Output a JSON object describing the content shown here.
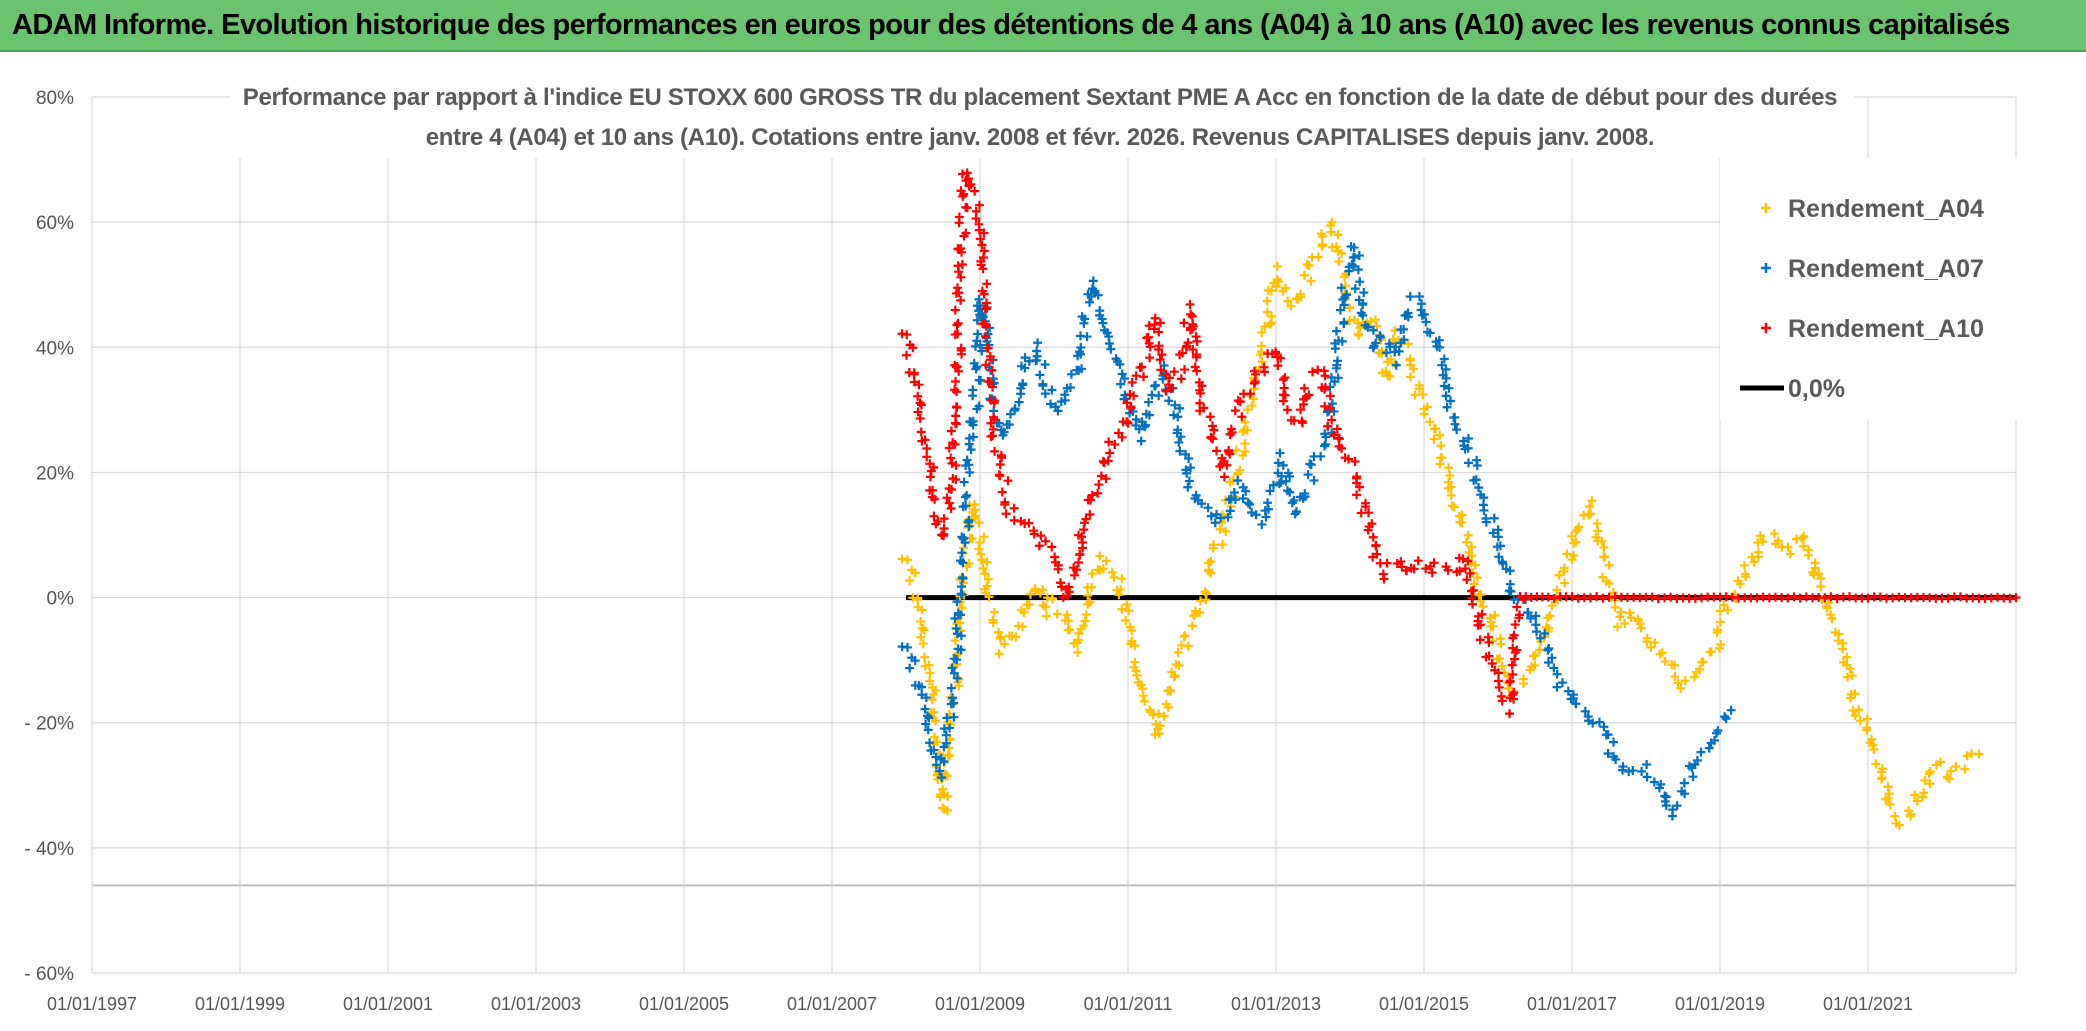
{
  "header": {
    "banner": "ADAM Informe. Evolution historique des performances en euros pour des détentions de 4 ans (A04) à 10 ans (A10) avec les revenus connus capitalisés"
  },
  "colors": {
    "banner_bg": "#6cc36e",
    "a04": "#ffc000",
    "a07": "#0070c0",
    "a10": "#ff0000",
    "zero": "#000000",
    "grid": "#d9d9d9"
  },
  "chart_data": {
    "type": "scatter",
    "title_lines": [
      "Performance  par rapport à l'indice EU STOXX 600 GROSS TR  du placement Sextant PME A Acc en fonction de la date de début pour des durées",
      "entre 4 (A04) et 10 ans (A10). Cotations entre janv. 2008 et févr. 2026. Revenus CAPITALISES depuis janv. 2008."
    ],
    "xlabel": "",
    "ylabel": "",
    "x_range": [
      1997.0,
      2023.0
    ],
    "ylim": [
      -60,
      80
    ],
    "y_ticks": [
      {
        "value": 80,
        "label": "80%"
      },
      {
        "value": 60,
        "label": "60%"
      },
      {
        "value": 40,
        "label": "40%"
      },
      {
        "value": 20,
        "label": "20%"
      },
      {
        "value": 0,
        "label": "0%"
      },
      {
        "value": -20,
        "label": "- 20%"
      },
      {
        "value": -40,
        "label": "- 40%"
      },
      {
        "value": -60,
        "label": "- 60%"
      }
    ],
    "x_ticks": [
      {
        "value": 1997.0,
        "label": "01/01/1997"
      },
      {
        "value": 1999.0,
        "label": "01/01/1999"
      },
      {
        "value": 2001.0,
        "label": "01/01/2001"
      },
      {
        "value": 2003.0,
        "label": "01/01/2003"
      },
      {
        "value": 2005.0,
        "label": "01/01/2005"
      },
      {
        "value": 2007.0,
        "label": "01/01/2007"
      },
      {
        "value": 2009.0,
        "label": "01/01/2009"
      },
      {
        "value": 2011.0,
        "label": "01/01/2011"
      },
      {
        "value": 2013.0,
        "label": "01/01/2013"
      },
      {
        "value": 2015.0,
        "label": "01/01/2015"
      },
      {
        "value": 2017.0,
        "label": "01/01/2017"
      },
      {
        "value": 2019.0,
        "label": "01/01/2019"
      },
      {
        "value": 2021.0,
        "label": "01/01/2021"
      }
    ],
    "extra_hline": -46,
    "legend_position": "top-right",
    "series": [
      {
        "name": "Rendement_A04",
        "color": "#ffc000",
        "marker": "+",
        "points": [
          [
            2008.0,
            6
          ],
          [
            2008.1,
            2
          ],
          [
            2008.2,
            -4
          ],
          [
            2008.3,
            -10
          ],
          [
            2008.45,
            -26
          ],
          [
            2008.5,
            -34
          ],
          [
            2008.6,
            -18
          ],
          [
            2008.7,
            -10
          ],
          [
            2008.8,
            5
          ],
          [
            2008.9,
            15
          ],
          [
            2009.0,
            10
          ],
          [
            2009.1,
            0
          ],
          [
            2009.2,
            -4
          ],
          [
            2009.3,
            -8
          ],
          [
            2009.45,
            -6
          ],
          [
            2009.6,
            -2
          ],
          [
            2009.75,
            2
          ],
          [
            2009.9,
            -2
          ],
          [
            2010.0,
            0
          ],
          [
            2010.1,
            -3
          ],
          [
            2010.2,
            -4
          ],
          [
            2010.35,
            -8
          ],
          [
            2010.5,
            2
          ],
          [
            2010.65,
            6
          ],
          [
            2010.8,
            5
          ],
          [
            2010.9,
            2
          ],
          [
            2011.0,
            -5
          ],
          [
            2011.15,
            -12
          ],
          [
            2011.3,
            -18
          ],
          [
            2011.4,
            -22
          ],
          [
            2011.55,
            -14
          ],
          [
            2011.7,
            -10
          ],
          [
            2011.85,
            -4
          ],
          [
            2012.0,
            -2
          ],
          [
            2012.1,
            5
          ],
          [
            2012.3,
            12
          ],
          [
            2012.5,
            22
          ],
          [
            2012.7,
            33
          ],
          [
            2012.9,
            45
          ],
          [
            2013.0,
            52
          ],
          [
            2013.15,
            48
          ],
          [
            2013.3,
            47
          ],
          [
            2013.5,
            53
          ],
          [
            2013.65,
            58
          ],
          [
            2013.75,
            60
          ],
          [
            2013.85,
            55
          ],
          [
            2013.95,
            48
          ],
          [
            2014.1,
            42
          ],
          [
            2014.25,
            45
          ],
          [
            2014.4,
            40
          ],
          [
            2014.5,
            35
          ],
          [
            2014.65,
            42
          ],
          [
            2014.8,
            38
          ],
          [
            2014.95,
            32
          ],
          [
            2015.05,
            28
          ],
          [
            2015.2,
            25
          ],
          [
            2015.35,
            18
          ],
          [
            2015.5,
            12
          ],
          [
            2015.6,
            8
          ],
          [
            2015.75,
            0
          ],
          [
            2015.9,
            -3
          ],
          [
            2016.05,
            -10
          ],
          [
            2016.2,
            -15
          ],
          [
            2016.3,
            -14
          ],
          [
            2016.5,
            -10
          ],
          [
            2016.65,
            -6
          ],
          [
            2016.8,
            0
          ],
          [
            2016.95,
            5
          ],
          [
            2017.1,
            12
          ],
          [
            2017.25,
            15
          ],
          [
            2017.35,
            10
          ],
          [
            2017.5,
            2
          ],
          [
            2017.65,
            -4
          ],
          [
            2017.8,
            -2
          ],
          [
            2017.95,
            -4
          ],
          [
            2018.1,
            -8
          ],
          [
            2018.3,
            -10
          ],
          [
            2018.5,
            -14
          ],
          [
            2018.65,
            -12
          ],
          [
            2018.8,
            -10
          ],
          [
            2018.95,
            -8
          ],
          [
            2019.05,
            -3
          ],
          [
            2019.2,
            0
          ],
          [
            2019.35,
            4
          ],
          [
            2019.55,
            10
          ],
          [
            2019.7,
            10
          ],
          [
            2019.85,
            8
          ],
          [
            2020.0,
            8
          ],
          [
            2020.15,
            10
          ],
          [
            2020.3,
            4
          ],
          [
            2020.5,
            -2
          ],
          [
            2020.7,
            -10
          ],
          [
            2020.85,
            -18
          ],
          [
            2021.0,
            -22
          ],
          [
            2021.15,
            -27
          ],
          [
            2021.3,
            -33
          ],
          [
            2021.45,
            -36
          ],
          [
            2021.6,
            -35
          ],
          [
            2021.75,
            -30
          ],
          [
            2021.9,
            -27
          ],
          [
            2022.1,
            -28
          ],
          [
            2022.3,
            -27
          ],
          [
            2022.5,
            -25
          ]
        ]
      },
      {
        "name": "Rendement_A07",
        "color": "#0070c0",
        "marker": "+",
        "points": [
          [
            2008.0,
            -8
          ],
          [
            2008.1,
            -12
          ],
          [
            2008.2,
            -15
          ],
          [
            2008.3,
            -20
          ],
          [
            2008.45,
            -28
          ],
          [
            2008.55,
            -22
          ],
          [
            2008.65,
            -16
          ],
          [
            2008.75,
            5
          ],
          [
            2008.85,
            20
          ],
          [
            2008.95,
            32
          ],
          [
            2009.0,
            48
          ],
          [
            2009.1,
            42
          ],
          [
            2009.2,
            30
          ],
          [
            2009.3,
            26
          ],
          [
            2009.45,
            30
          ],
          [
            2009.6,
            36
          ],
          [
            2009.75,
            40
          ],
          [
            2009.9,
            34
          ],
          [
            2010.05,
            30
          ],
          [
            2010.2,
            33
          ],
          [
            2010.35,
            38
          ],
          [
            2010.5,
            50
          ],
          [
            2010.65,
            46
          ],
          [
            2010.8,
            40
          ],
          [
            2010.9,
            36
          ],
          [
            2011.0,
            30
          ],
          [
            2011.15,
            26
          ],
          [
            2011.3,
            30
          ],
          [
            2011.45,
            36
          ],
          [
            2011.6,
            32
          ],
          [
            2011.75,
            24
          ],
          [
            2011.9,
            16
          ],
          [
            2012.05,
            14
          ],
          [
            2012.2,
            12
          ],
          [
            2012.35,
            14
          ],
          [
            2012.5,
            18
          ],
          [
            2012.65,
            14
          ],
          [
            2012.8,
            12
          ],
          [
            2012.95,
            16
          ],
          [
            2013.1,
            22
          ],
          [
            2013.25,
            14
          ],
          [
            2013.4,
            16
          ],
          [
            2013.55,
            22
          ],
          [
            2013.7,
            26
          ],
          [
            2013.85,
            42
          ],
          [
            2013.95,
            52
          ],
          [
            2014.05,
            56
          ],
          [
            2014.15,
            48
          ],
          [
            2014.3,
            40
          ],
          [
            2014.45,
            42
          ],
          [
            2014.6,
            38
          ],
          [
            2014.75,
            45
          ],
          [
            2014.9,
            48
          ],
          [
            2015.05,
            44
          ],
          [
            2015.2,
            40
          ],
          [
            2015.35,
            30
          ],
          [
            2015.5,
            26
          ],
          [
            2015.65,
            22
          ],
          [
            2015.8,
            16
          ],
          [
            2015.95,
            10
          ],
          [
            2016.1,
            4
          ],
          [
            2016.25,
            0
          ],
          [
            2016.4,
            -2
          ],
          [
            2016.55,
            -6
          ],
          [
            2016.7,
            -10
          ],
          [
            2016.85,
            -14
          ],
          [
            2017.0,
            -16
          ],
          [
            2017.15,
            -18
          ],
          [
            2017.3,
            -20
          ],
          [
            2017.45,
            -22
          ],
          [
            2017.6,
            -26
          ],
          [
            2017.75,
            -28
          ],
          [
            2017.9,
            -27
          ],
          [
            2018.05,
            -28
          ],
          [
            2018.2,
            -30
          ],
          [
            2018.35,
            -34
          ],
          [
            2018.5,
            -31
          ],
          [
            2018.65,
            -27
          ],
          [
            2018.8,
            -24
          ],
          [
            2018.95,
            -22
          ],
          [
            2019.05,
            -20
          ],
          [
            2019.15,
            -18
          ]
        ]
      },
      {
        "name": "Rendement_A10",
        "color": "#ff0000",
        "marker": "+",
        "points": [
          [
            2008.0,
            42
          ],
          [
            2008.1,
            35
          ],
          [
            2008.2,
            30
          ],
          [
            2008.3,
            22
          ],
          [
            2008.4,
            14
          ],
          [
            2008.5,
            10
          ],
          [
            2008.6,
            15
          ],
          [
            2008.7,
            40
          ],
          [
            2008.75,
            55
          ],
          [
            2008.8,
            68
          ],
          [
            2008.9,
            65
          ],
          [
            2009.0,
            60
          ],
          [
            2009.1,
            40
          ],
          [
            2009.2,
            25
          ],
          [
            2009.3,
            20
          ],
          [
            2009.4,
            14
          ],
          [
            2009.5,
            13
          ],
          [
            2009.6,
            12
          ],
          [
            2009.75,
            10
          ],
          [
            2009.9,
            8
          ],
          [
            2010.05,
            5
          ],
          [
            2010.2,
            0
          ],
          [
            2010.35,
            8
          ],
          [
            2010.5,
            15
          ],
          [
            2010.65,
            20
          ],
          [
            2010.8,
            25
          ],
          [
            2010.95,
            28
          ],
          [
            2011.1,
            34
          ],
          [
            2011.25,
            38
          ],
          [
            2011.35,
            45
          ],
          [
            2011.45,
            40
          ],
          [
            2011.55,
            33
          ],
          [
            2011.7,
            36
          ],
          [
            2011.85,
            46
          ],
          [
            2012.0,
            30
          ],
          [
            2012.15,
            26
          ],
          [
            2012.3,
            20
          ],
          [
            2012.45,
            28
          ],
          [
            2012.6,
            32
          ],
          [
            2012.75,
            36
          ],
          [
            2012.9,
            38
          ],
          [
            2013.0,
            40
          ],
          [
            2013.15,
            30
          ],
          [
            2013.3,
            28
          ],
          [
            2013.45,
            35
          ],
          [
            2013.6,
            36
          ],
          [
            2013.75,
            28
          ],
          [
            2013.9,
            24
          ],
          [
            2014.05,
            20
          ],
          [
            2014.2,
            14
          ],
          [
            2014.35,
            6
          ],
          [
            2014.5,
            4
          ],
          [
            2014.65,
            6
          ],
          [
            2014.8,
            4
          ],
          [
            2014.95,
            6
          ],
          [
            2015.1,
            4
          ],
          [
            2015.25,
            5
          ],
          [
            2015.4,
            4
          ],
          [
            2015.55,
            6
          ],
          [
            2015.7,
            -2
          ],
          [
            2015.85,
            -8
          ],
          [
            2016.0,
            -12
          ],
          [
            2016.1,
            -16
          ],
          [
            2016.15,
            -18
          ],
          [
            2016.3,
            0
          ],
          [
            2016.6,
            0
          ],
          [
            2017.0,
            0
          ],
          [
            2017.5,
            0
          ],
          [
            2018.0,
            0
          ],
          [
            2018.5,
            0
          ],
          [
            2019.0,
            0
          ],
          [
            2019.5,
            0
          ],
          [
            2020.0,
            0
          ],
          [
            2020.5,
            0
          ],
          [
            2021.0,
            0
          ],
          [
            2021.5,
            0
          ],
          [
            2022.0,
            0
          ],
          [
            2022.5,
            0
          ],
          [
            2023.0,
            0
          ]
        ]
      }
    ],
    "reference_line": {
      "name": "0,0%",
      "value": 0,
      "x_start": 2008.0,
      "x_end": 2023.0,
      "color": "#000000"
    }
  }
}
